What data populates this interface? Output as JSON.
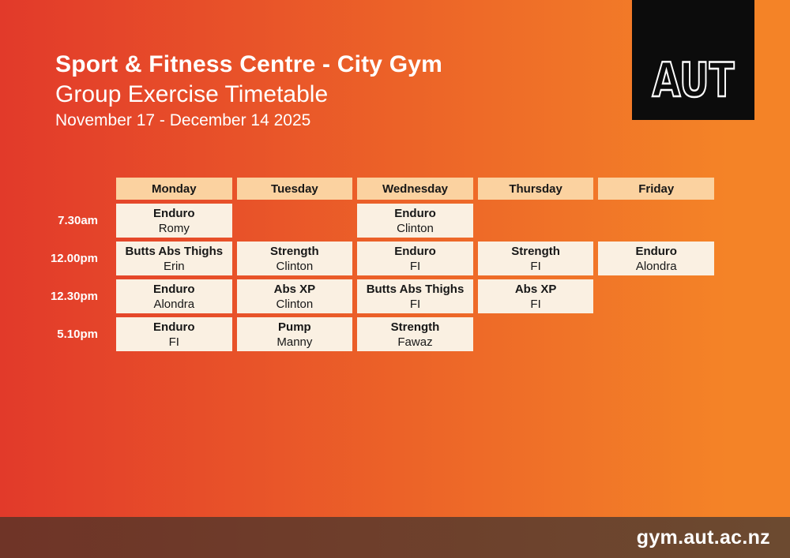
{
  "page": {
    "bg_gradient_left": "#e23a2a",
    "bg_gradient_right": "#f48327"
  },
  "header": {
    "title": "Sport & Fitness Centre - City Gym",
    "subtitle": "Group Exercise Timetable",
    "date_range": "November 17 - December 14 2025"
  },
  "logo": {
    "text": "AUT",
    "bg": "#0c0c0c"
  },
  "timetable": {
    "header_bg": "#fbd2a0",
    "cell_bg": "#faf0e2",
    "text_color": "#171717",
    "days": [
      "Monday",
      "Tuesday",
      "Wednesday",
      "Thursday",
      "Friday"
    ],
    "rows": [
      {
        "time": "7.30am",
        "cells": [
          {
            "class": "Enduro",
            "instructor": "Romy"
          },
          null,
          {
            "class": "Enduro",
            "instructor": "Clinton"
          },
          null,
          null
        ]
      },
      {
        "time": "12.00pm",
        "cells": [
          {
            "class": "Butts Abs Thighs",
            "instructor": "Erin"
          },
          {
            "class": "Strength",
            "instructor": "Clinton"
          },
          {
            "class": "Enduro",
            "instructor": "FI"
          },
          {
            "class": "Strength",
            "instructor": "FI"
          },
          {
            "class": "Enduro",
            "instructor": "Alondra"
          }
        ]
      },
      {
        "time": "12.30pm",
        "cells": [
          {
            "class": "Enduro",
            "instructor": "Alondra"
          },
          {
            "class": "Abs XP",
            "instructor": "Clinton"
          },
          {
            "class": "Butts Abs Thighs",
            "instructor": "FI"
          },
          {
            "class": "Abs XP",
            "instructor": "FI"
          },
          null
        ]
      },
      {
        "time": "5.10pm",
        "cells": [
          {
            "class": "Enduro",
            "instructor": "FI"
          },
          {
            "class": "Pump",
            "instructor": "Manny"
          },
          {
            "class": "Strength",
            "instructor": "Fawaz"
          },
          null,
          null
        ]
      }
    ]
  },
  "footer": {
    "url": "gym.aut.ac.nz",
    "bg_left": "#6f3427",
    "bg_right": "#6c4a30"
  }
}
